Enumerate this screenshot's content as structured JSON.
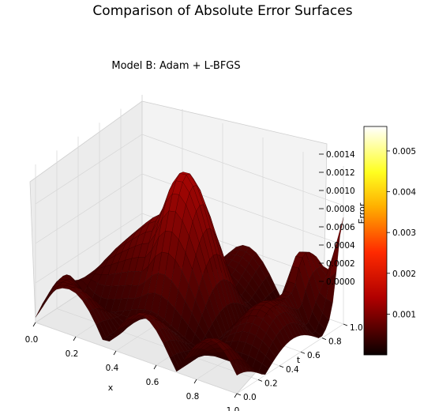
{
  "figure": {
    "suptitle": "Comparison of Absolute Error Surfaces"
  },
  "chart_data": {
    "type": "surface3d",
    "title": "Model B: Adam + L-BFGS",
    "xlabel": "x",
    "ylabel": "t",
    "zlabel": "Error",
    "xlim": [
      0.0,
      1.0
    ],
    "ylim": [
      0.0,
      1.0
    ],
    "zlim": [
      0.0,
      0.0015
    ],
    "x_ticks": [
      "0.0",
      "0.2",
      "0.4",
      "0.6",
      "0.8",
      "1.0"
    ],
    "y_ticks": [
      "0.0",
      "0.2",
      "0.4",
      "0.6",
      "0.8",
      "1.0"
    ],
    "z_ticks": [
      "0.0000",
      "0.0002",
      "0.0004",
      "0.0006",
      "0.0008",
      "0.0010",
      "0.0012",
      "0.0014"
    ],
    "grid": true,
    "colormap": "hot",
    "colorbar": {
      "range": [
        0.0,
        0.0056
      ],
      "ticks": [
        "0.001",
        "0.002",
        "0.003",
        "0.004",
        "0.005"
      ],
      "tick_values": [
        0.001,
        0.002,
        0.003,
        0.004,
        0.005
      ]
    },
    "surface_approx": {
      "description_values_note": "approximate |error| over x,t grid",
      "x": [
        0.0,
        0.1,
        0.2,
        0.3,
        0.4,
        0.5,
        0.6,
        0.7,
        0.8,
        0.9,
        1.0
      ],
      "t": [
        0.0,
        0.1,
        0.2,
        0.3,
        0.4,
        0.5,
        0.6,
        0.7,
        0.8,
        0.9,
        1.0
      ],
      "peak_error": 0.0056
    },
    "colors": {
      "surface_low": "#0a0000",
      "surface_high": "#8b0000",
      "pane": "#f2f2f2",
      "grid": "#d9d9d9"
    }
  }
}
